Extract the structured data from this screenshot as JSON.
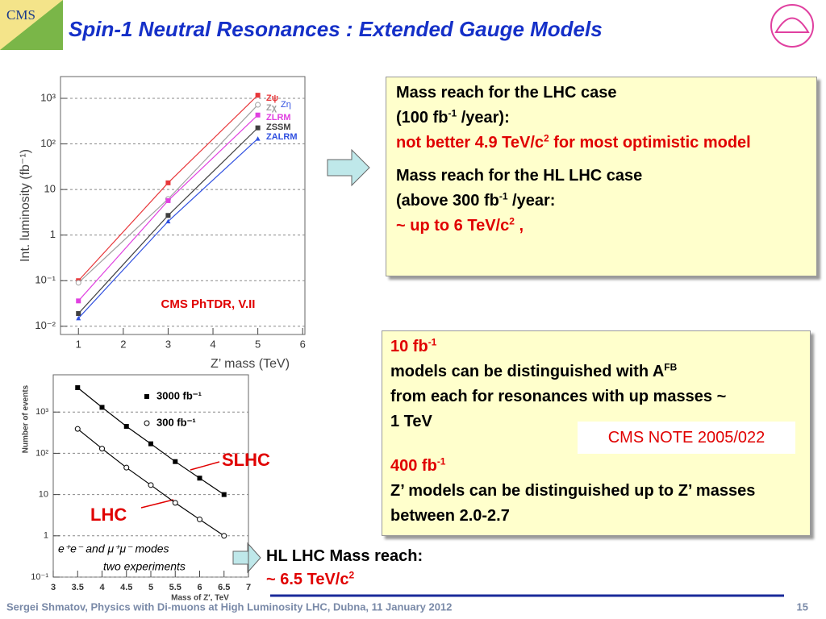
{
  "title": "Spin-1 Neutral Resonances : Extended Gauge Models",
  "logo": "CMS",
  "box1": {
    "p1": [
      "Mass reach for the LHC case"
    ],
    "p2": [
      " (100 fb",
      "-1",
      " /year):"
    ],
    "p3": [
      "not better 4.9 TeV/c",
      "2",
      " for most optimistic model"
    ],
    "p4": [
      "Mass reach for the HL LHC case"
    ],
    "p5": [
      "(above 300 fb",
      "-1",
      " /year:"
    ],
    "p6": [
      "~ up to 6 TeV/c",
      "2",
      " ,"
    ]
  },
  "box2": {
    "a": [
      "10 fb",
      "-1"
    ],
    "b": [
      "models can be distinguished with A",
      "FB"
    ],
    "c": "from each  for resonances with up masses  ~ 1 TeV",
    "note": "CMS NOTE 2005/022",
    "d": [
      "400 fb",
      "-1"
    ],
    "e": "Z’ models can be distinguished up to Z’ masses between 2.0-2.7"
  },
  "hl": {
    "line1": "HL LHC Mass reach:",
    "line2": [
      "~ 6.5 TeV/c",
      "2"
    ]
  },
  "footer": "Sergei Shmatov, Physics with Di-muons at High Luminosity LHC, Dubna, 11 January 2012",
  "page": 15,
  "chart_data": [
    {
      "type": "line",
      "ylabel": "Int. luminosity (fb⁻¹)",
      "xlabel": "Z’ mass (TeV)",
      "log_y": true,
      "grid": true,
      "x": [
        1,
        3,
        5
      ],
      "xlim": [
        0.6,
        6.05
      ],
      "xticks": [
        1,
        2,
        3,
        4,
        5,
        6
      ],
      "ylim": [
        0.0066,
        3000
      ],
      "yticks": [
        {
          "value": 0.01,
          "label": "10⁻²"
        },
        {
          "value": 0.1,
          "label": "10⁻¹"
        },
        1,
        10,
        {
          "value": 100,
          "label": "10²"
        },
        {
          "value": 1000,
          "label": "10³"
        }
      ],
      "series": [
        {
          "name": "Zψ",
          "color": "#e8373a",
          "marker": "square",
          "values": [
            0.1,
            14,
            1170
          ]
        },
        {
          "name": "Zχ",
          "color": "#a0a0a0",
          "marker": "circle-open",
          "values": [
            0.09,
            6.2,
            720
          ]
        },
        {
          "name": "ZLRM",
          "color": "#e040e0",
          "marker": "square",
          "values": [
            0.036,
            5.7,
            430
          ]
        },
        {
          "name": "ZSSM",
          "color": "#404040",
          "marker": "square",
          "values": [
            0.019,
            2.7,
            225
          ]
        },
        {
          "name": "ZALRM",
          "color": "#3050e0",
          "marker": "triangle",
          "values": [
            0.015,
            2,
            130
          ]
        }
      ],
      "annotations": [
        "CMS PhTDR, V.II",
        "Zη"
      ]
    },
    {
      "type": "line",
      "ylabel": "Number of events",
      "xlabel": "Mass of Z′, TeV",
      "log_y": true,
      "grid": true,
      "x": [
        3.5,
        4,
        4.5,
        5,
        5.5,
        6,
        6.5
      ],
      "xlim": [
        3,
        7
      ],
      "xticks": [
        3,
        3.5,
        4,
        4.5,
        5,
        5.5,
        6,
        6.5,
        7
      ],
      "ylim": [
        0.1,
        8000
      ],
      "yticks": [
        {
          "value": 0.1,
          "label": "10⁻¹"
        },
        1,
        10,
        {
          "value": 100,
          "label": "10²"
        },
        {
          "value": 1000,
          "label": "10³"
        }
      ],
      "series": [
        {
          "name": "3000 fb⁻¹",
          "color": "#000000",
          "marker": "square",
          "values": [
            3900,
            1300,
            450,
            170,
            63,
            25,
            10
          ]
        },
        {
          "name": "300 fb⁻¹",
          "color": "#000000",
          "marker": "circle-open",
          "values": [
            390,
            130,
            45,
            17,
            6.3,
            2.5,
            1
          ]
        }
      ],
      "annotations": [
        "e⁺e⁻ and μ⁺μ⁻ modes",
        "two experiments",
        "SLHC",
        "LHC"
      ]
    }
  ]
}
